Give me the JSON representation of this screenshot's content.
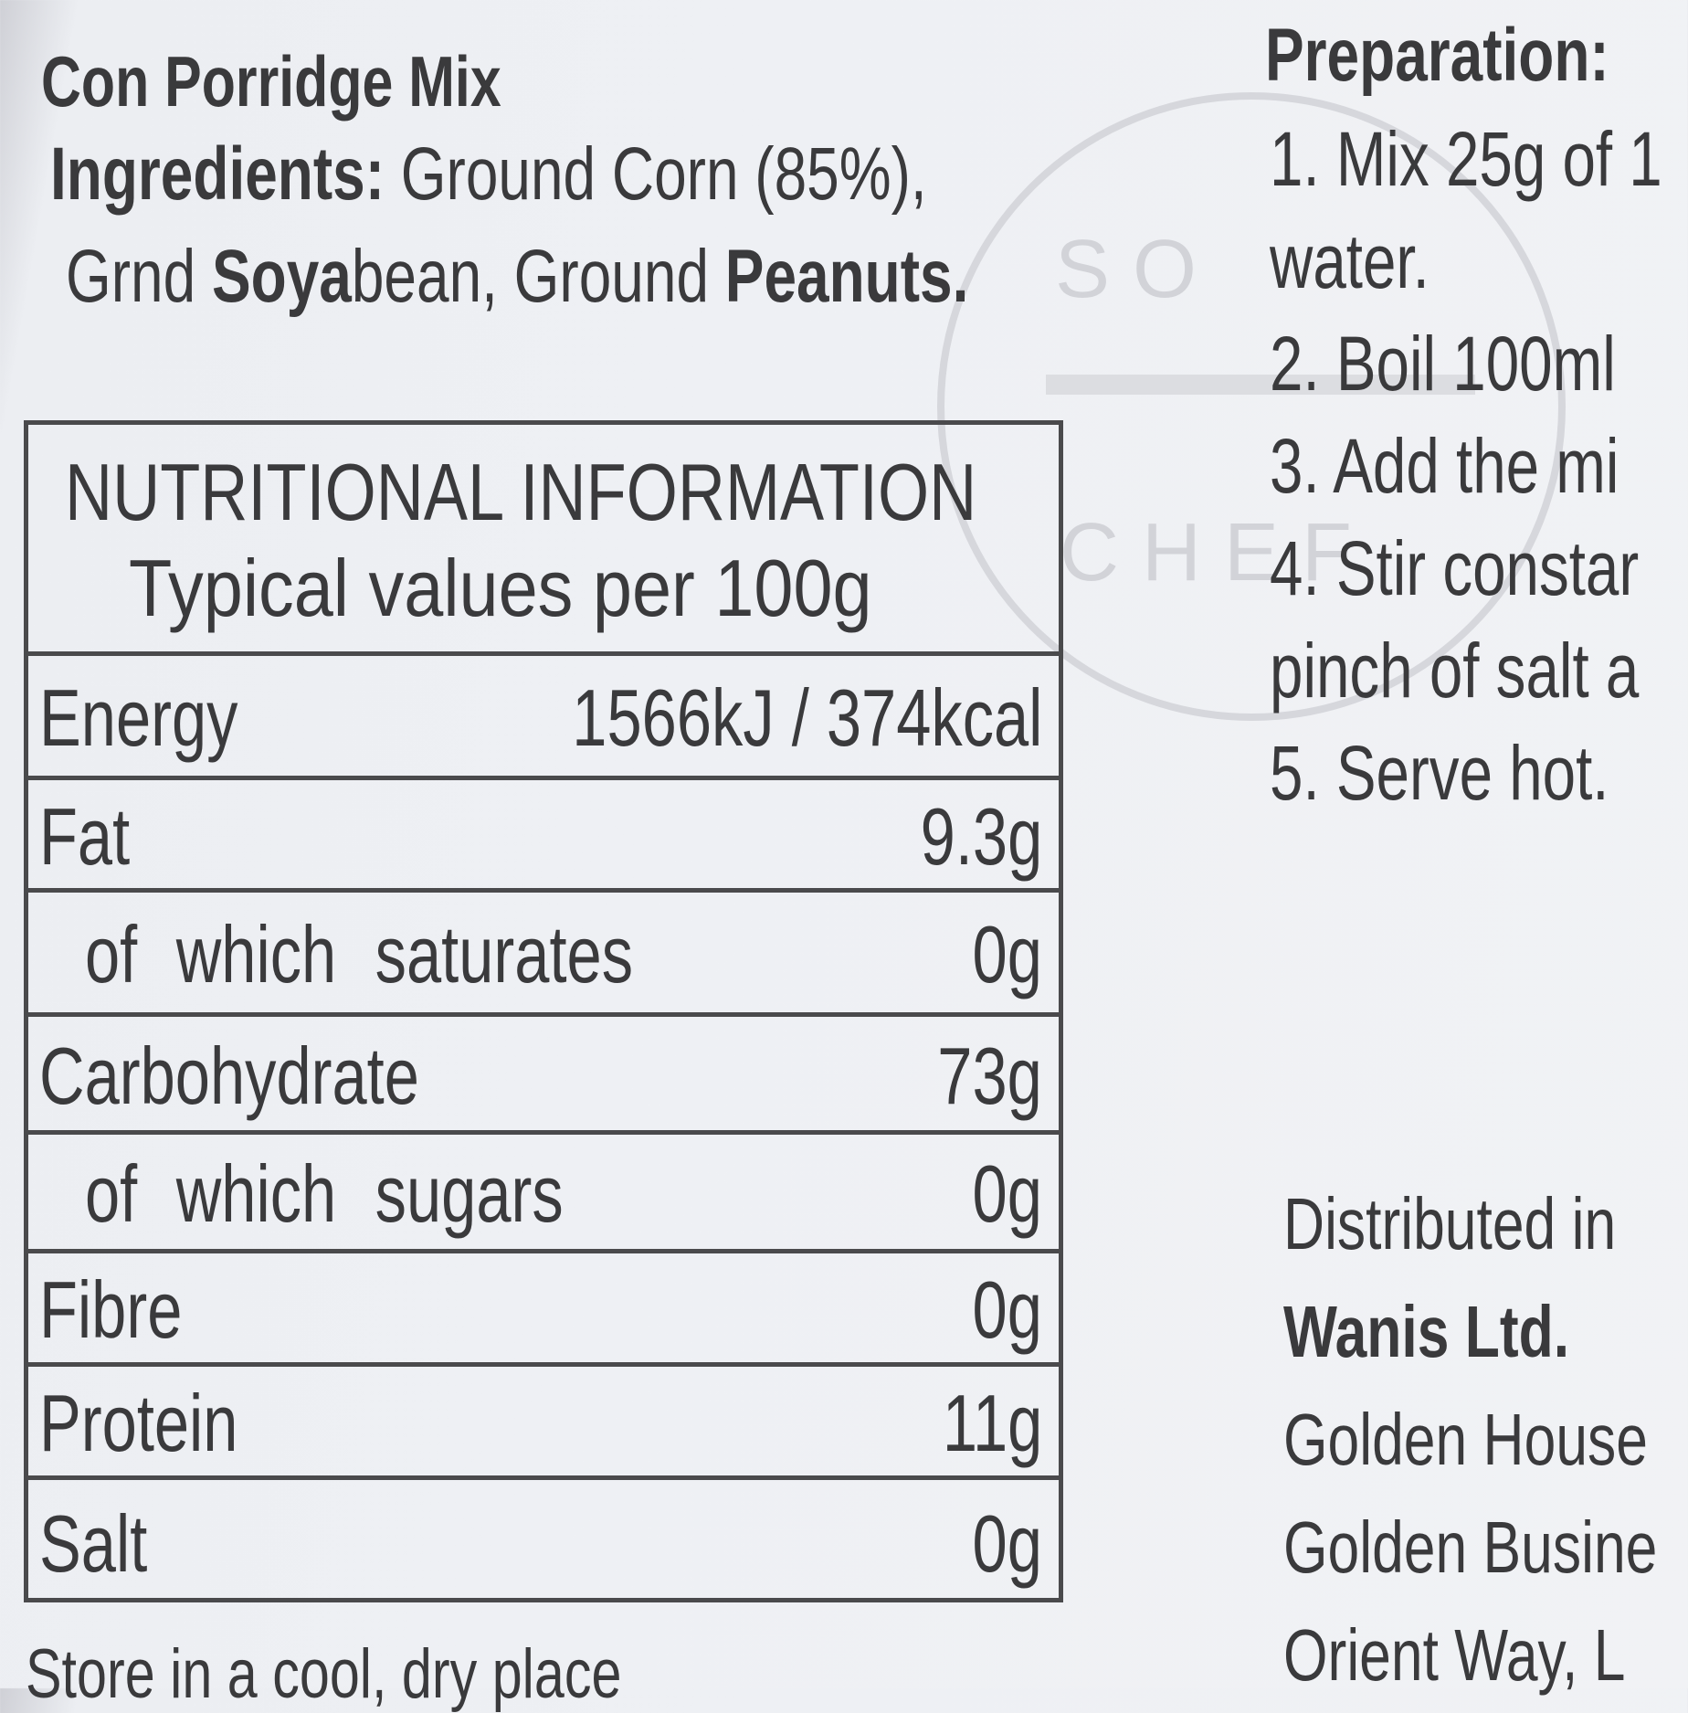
{
  "product": {
    "title": "Con Porridge Mix"
  },
  "ingredients": {
    "lines": [
      [
        {
          "text": "Ingredients: ",
          "bold": true
        },
        {
          "text": "Ground Corn (85%),",
          "bold": false
        }
      ],
      [
        {
          "text": "Grnd ",
          "bold": false
        },
        {
          "text": "Soya",
          "bold": true
        },
        {
          "text": "bean, Ground ",
          "bold": false
        },
        {
          "text": "Peanuts.",
          "bold": true
        }
      ]
    ]
  },
  "nutrition": {
    "header": [
      "NUTRITIONAL INFORMATION",
      "Typical values per 100g"
    ],
    "rows": [
      {
        "label": "Energy",
        "value": "1566kJ / 374kcal",
        "indent": false
      },
      {
        "label": "Fat",
        "value": "9.3g",
        "indent": false
      },
      {
        "label": "of which saturates",
        "value": "0g",
        "indent": true
      },
      {
        "label": "Carbohydrate",
        "value": "73g",
        "indent": false
      },
      {
        "label": "of which sugars",
        "value": "0g",
        "indent": true
      },
      {
        "label": "Fibre",
        "value": "0g",
        "indent": false
      },
      {
        "label": "Protein",
        "value": "11g",
        "indent": false
      },
      {
        "label": "Salt",
        "value": "0g",
        "indent": false
      }
    ]
  },
  "storage": "Store in a cool, dry place",
  "preparation": {
    "title": "Preparation:",
    "lines": [
      "1. Mix 25g of 1",
      "water.",
      "2. Boil 100ml",
      "3. Add the mi",
      "4. Stir constar",
      "pinch of salt a",
      "5. Serve hot."
    ]
  },
  "distributor": {
    "lines": [
      "Distributed in",
      "Wanis Ltd.",
      "Golden House",
      "Golden Busine",
      "Orient Way, L"
    ]
  },
  "watermark": [
    "S O",
    "C H E F"
  ]
}
